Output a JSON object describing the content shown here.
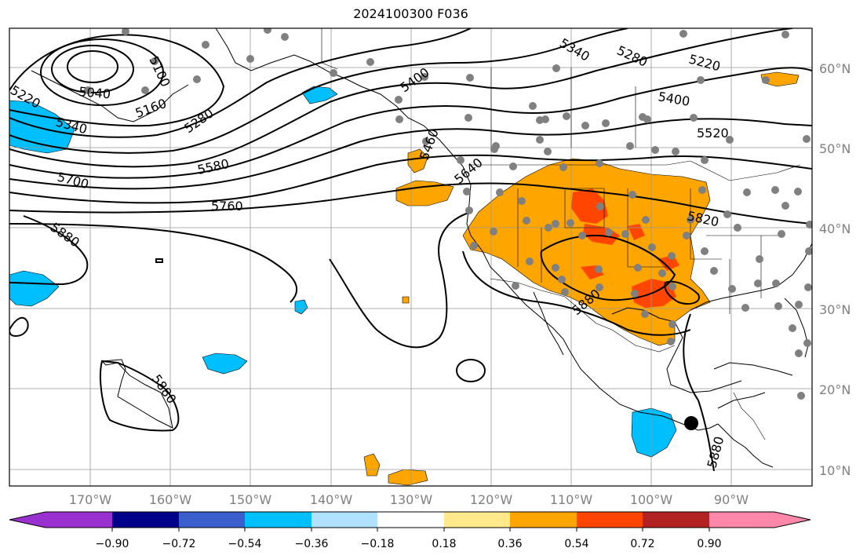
{
  "title": "2024100300 F036",
  "lat_labels": [
    "60°N",
    "50°N",
    "40°N",
    "30°N",
    "20°N",
    "10°N"
  ],
  "lon_labels": [
    "170°W",
    "160°W",
    "150°W",
    "140°W",
    "130°W",
    "120°W",
    "110°W",
    "100°W",
    "90°W"
  ],
  "colorbar": {
    "tick_labels": [
      "−0.90",
      "−0.72",
      "−0.54",
      "−0.36",
      "−0.18",
      "0.18",
      "0.36",
      "0.54",
      "0.72",
      "0.90"
    ],
    "colors": [
      "#9b30d0",
      "#00008b",
      "#3a5fcd",
      "#00bfff",
      "#b0e2ff",
      "#ffffff",
      "#ffe98a",
      "#ffa500",
      "#ff4500",
      "#b22222",
      "#ff88aa"
    ]
  },
  "contour_labels": [
    "5040",
    "5100",
    "5160",
    "5220",
    "5280",
    "5340",
    "5400",
    "5460",
    "5520",
    "5580",
    "5640",
    "5700",
    "5760",
    "5820",
    "5880"
  ],
  "colors": {
    "frame": "#000000",
    "grid": "#999999",
    "station": "#808080",
    "positive": "#ffa500",
    "strong_positive": "#ff4500",
    "negative": "#00bfff"
  }
}
